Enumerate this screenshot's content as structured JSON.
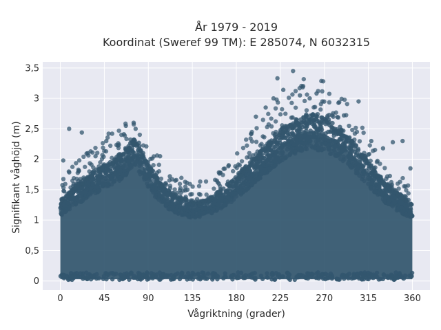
{
  "chart_data": {
    "type": "scatter",
    "title_lines": [
      "År 1979 - 2019",
      "Koordinat (Sweref 99 TM): E 285074, N 6032315"
    ],
    "xlabel": "Vågriktning (grader)",
    "ylabel": "Signifikant våghöjd (m)",
    "xlim": [
      -18,
      378
    ],
    "ylim": [
      -0.15,
      3.6
    ],
    "x_ticks": [
      0,
      45,
      90,
      135,
      180,
      225,
      270,
      315,
      360
    ],
    "x_tick_labels": [
      "0",
      "45",
      "90",
      "135",
      "180",
      "225",
      "270",
      "315",
      "360"
    ],
    "y_ticks": [
      0,
      0.5,
      1,
      1.5,
      2,
      2.5,
      3,
      3.5
    ],
    "y_tick_labels": [
      "0",
      "0,5",
      "1",
      "1,5",
      "2",
      "2,5",
      "3",
      "3,5"
    ],
    "grid": true,
    "marker_color": "#33566e",
    "plot_background": "#e8e9f2",
    "upper_envelope": {
      "x": [
        0,
        15,
        30,
        45,
        60,
        70,
        75,
        80,
        90,
        105,
        120,
        135,
        150,
        165,
        180,
        195,
        210,
        225,
        240,
        255,
        270,
        285,
        300,
        315,
        330,
        345,
        360
      ],
      "y": [
        1.3,
        1.5,
        1.7,
        1.85,
        2.0,
        2.15,
        2.25,
        2.2,
        1.85,
        1.5,
        1.35,
        1.25,
        1.3,
        1.45,
        1.65,
        1.9,
        2.15,
        2.4,
        2.55,
        2.65,
        2.6,
        2.45,
        2.2,
        1.9,
        1.6,
        1.4,
        1.25
      ]
    },
    "outliers": [
      {
        "x": 9,
        "y": 2.5
      },
      {
        "x": 22,
        "y": 2.44
      },
      {
        "x": 28,
        "y": 2.1
      },
      {
        "x": 47,
        "y": 2.3
      },
      {
        "x": 53,
        "y": 2.42
      },
      {
        "x": 67,
        "y": 2.55
      },
      {
        "x": 75,
        "y": 2.6
      },
      {
        "x": 77,
        "y": 2.5
      },
      {
        "x": 102,
        "y": 2.05
      },
      {
        "x": 112,
        "y": 1.72
      },
      {
        "x": 160,
        "y": 1.65
      },
      {
        "x": 200,
        "y": 2.7
      },
      {
        "x": 210,
        "y": 2.85
      },
      {
        "x": 218,
        "y": 3.0
      },
      {
        "x": 222,
        "y": 3.33
      },
      {
        "x": 228,
        "y": 3.14
      },
      {
        "x": 238,
        "y": 3.45
      },
      {
        "x": 245,
        "y": 3.05
      },
      {
        "x": 255,
        "y": 3.0
      },
      {
        "x": 262,
        "y": 3.08
      },
      {
        "x": 268,
        "y": 2.95
      },
      {
        "x": 290,
        "y": 2.72
      },
      {
        "x": 305,
        "y": 2.95
      },
      {
        "x": 318,
        "y": 2.3
      },
      {
        "x": 330,
        "y": 2.18
      },
      {
        "x": 340,
        "y": 2.28
      },
      {
        "x": 350,
        "y": 2.3
      },
      {
        "x": 358,
        "y": 1.85
      },
      {
        "x": 3,
        "y": 1.98
      },
      {
        "x": 36,
        "y": 2.05
      },
      {
        "x": 85,
        "y": 1.95
      },
      {
        "x": 130,
        "y": 1.5
      }
    ]
  }
}
